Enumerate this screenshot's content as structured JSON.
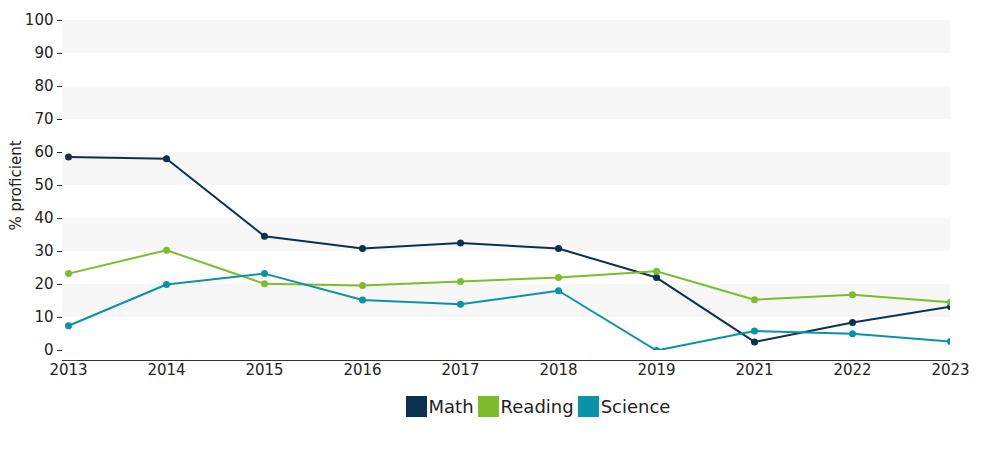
{
  "chart_data": {
    "type": "line",
    "categories": [
      "2013",
      "2014",
      "2015",
      "2016",
      "2017",
      "2018",
      "2019",
      "2021",
      "2022",
      "2023"
    ],
    "series": [
      {
        "name": "Math",
        "color": "#0b3050",
        "values": [
          58.6,
          58.1,
          34.6,
          30.9,
          32.6,
          30.9,
          22.1,
          2.6,
          8.5,
          13.3
        ]
      },
      {
        "name": "Reading",
        "color": "#7dbd2b",
        "values": [
          23.3,
          30.4,
          20.2,
          19.7,
          20.9,
          22.1,
          24.0,
          15.4,
          16.9,
          14.6
        ]
      },
      {
        "name": "Science",
        "color": "#0a93a8",
        "values": [
          7.5,
          20.0,
          23.3,
          15.3,
          14.0,
          18.1,
          0.0,
          5.9,
          5.1,
          2.7
        ]
      }
    ],
    "y_label": "% proficient",
    "ylim": [
      0,
      100
    ],
    "yticks": [
      0,
      10,
      20,
      30,
      40,
      50,
      60,
      70,
      80,
      90,
      100
    ],
    "grid": true,
    "marker": "circle",
    "legend": "bottom"
  }
}
